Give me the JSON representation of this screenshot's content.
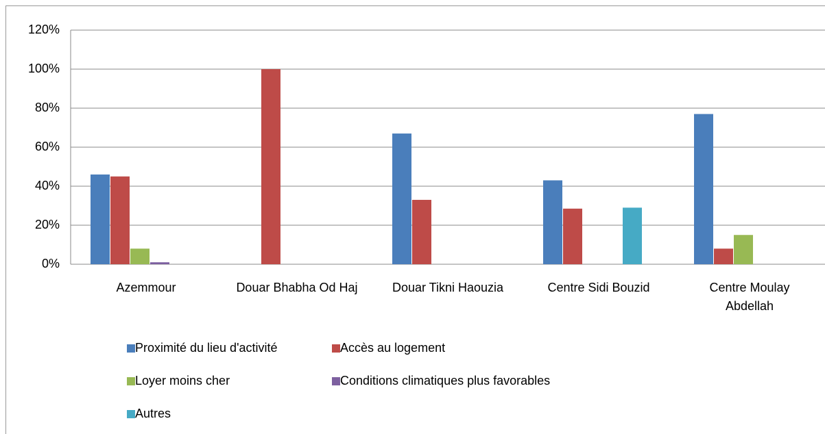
{
  "chart_data": {
    "type": "bar",
    "categories": [
      "Azemmour",
      "Douar Bhabha Od Haj",
      "Douar Tikni Haouzia",
      "Centre Sidi Bouzid",
      "Centre Moulay Abdellah"
    ],
    "series": [
      {
        "name": "Proximité du lieu d'activité",
        "color": "#4a7ebb",
        "values": [
          46,
          0,
          67,
          43,
          77
        ]
      },
      {
        "name": "Accès au logement",
        "color": "#be4b48",
        "values": [
          45,
          100,
          33,
          28.5,
          8
        ]
      },
      {
        "name": "Loyer moins cher",
        "color": "#98b954",
        "values": [
          8,
          0,
          0,
          0,
          15
        ]
      },
      {
        "name": "Conditions climatiques plus favorables",
        "color": "#7d60a0",
        "values": [
          1,
          0,
          0,
          0,
          0
        ]
      },
      {
        "name": "Autres",
        "color": "#46aac5",
        "values": [
          0,
          0,
          0,
          29,
          0
        ]
      }
    ],
    "ylim": [
      0,
      120
    ],
    "yticks": [
      {
        "value": 0,
        "label": "0%"
      },
      {
        "value": 20,
        "label": "20%"
      },
      {
        "value": 40,
        "label": "40%"
      },
      {
        "value": 60,
        "label": "60%"
      },
      {
        "value": 80,
        "label": "80%"
      },
      {
        "value": 100,
        "label": "100%"
      },
      {
        "value": 120,
        "label": "120%"
      }
    ],
    "grid": true,
    "legend": "bottom"
  }
}
